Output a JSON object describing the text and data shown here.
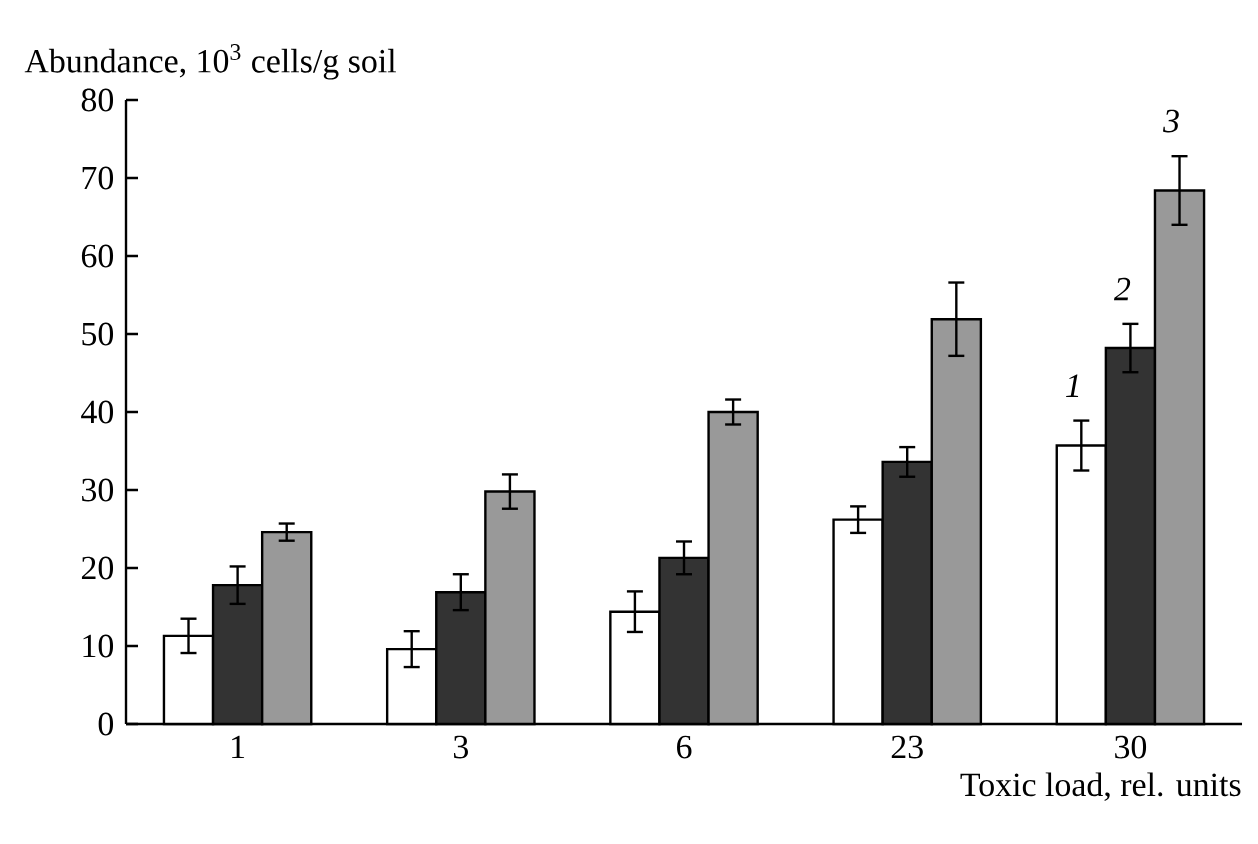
{
  "chart_data": {
    "type": "bar",
    "xlabel": "Toxic load, rel. units",
    "ylabel": "Abundance, 10$^{3}$ cells/g soil",
    "categories": [
      "1",
      "3",
      "6",
      "23",
      "30"
    ],
    "series": [
      {
        "name": "1",
        "color": "#ffffff",
        "values": [
          11.3,
          9.6,
          14.4,
          26.2,
          35.7
        ],
        "errors": [
          2.2,
          2.3,
          2.6,
          1.7,
          3.2
        ]
      },
      {
        "name": "2",
        "color": "#333333",
        "values": [
          17.8,
          16.9,
          21.3,
          33.6,
          48.2
        ],
        "errors": [
          2.4,
          2.3,
          2.1,
          1.9,
          3.1
        ]
      },
      {
        "name": "3",
        "color": "#999999",
        "values": [
          24.6,
          29.8,
          40.0,
          51.9,
          68.4
        ],
        "errors": [
          1.1,
          2.2,
          1.6,
          4.7,
          4.4
        ]
      }
    ],
    "ylim": [
      0,
      80
    ],
    "yticks": [
      0,
      10,
      20,
      30,
      40,
      50,
      60,
      70,
      80
    ]
  }
}
